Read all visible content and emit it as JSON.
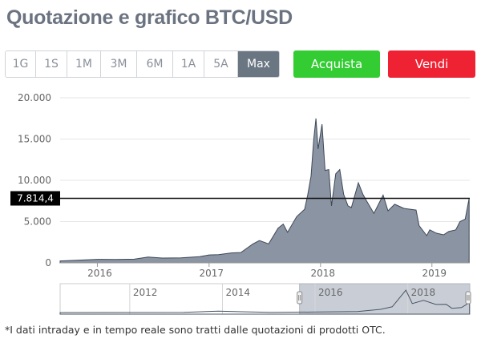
{
  "title": "Quotazione e grafico BTC/USD",
  "ranges": [
    {
      "label": "1G",
      "active": false
    },
    {
      "label": "1S",
      "active": false
    },
    {
      "label": "1M",
      "active": false
    },
    {
      "label": "3M",
      "active": false
    },
    {
      "label": "6M",
      "active": false
    },
    {
      "label": "1A",
      "active": false
    },
    {
      "label": "5A",
      "active": false
    },
    {
      "label": "Max",
      "active": true
    }
  ],
  "buy_label": "Acquista",
  "sell_label": "Vendi",
  "footnote": "*I dati intraday e in tempo reale sono tratti dalle quotazioni di prodotti OTC.",
  "colors": {
    "buy": "#33cc33",
    "sell": "#ee2233",
    "area": "#8a94a3",
    "active_range": "#6b7683"
  },
  "chart_data": {
    "type": "area",
    "ylim": [
      0,
      20000
    ],
    "y_ticks": [
      "0",
      "5.000",
      "10.000",
      "15.000",
      "20.000"
    ],
    "y_tick_values": [
      0,
      5000,
      10000,
      15000,
      20000
    ],
    "x_ticks": [
      "2016",
      "2017",
      "2018",
      "2019"
    ],
    "x_tick_values": [
      "2016-01-01",
      "2017-01-01",
      "2018-01-01",
      "2019-01-01"
    ],
    "xlim": [
      "2015-09-01",
      "2019-05-05"
    ],
    "current_value": 7814.4,
    "current_label": "7.814,4",
    "points": [
      [
        "2015-09-01",
        230
      ],
      [
        "2015-11-01",
        330
      ],
      [
        "2016-01-01",
        430
      ],
      [
        "2016-03-01",
        415
      ],
      [
        "2016-05-01",
        450
      ],
      [
        "2016-06-15",
        700
      ],
      [
        "2016-08-01",
        580
      ],
      [
        "2016-10-01",
        610
      ],
      [
        "2016-12-01",
        750
      ],
      [
        "2017-01-01",
        960
      ],
      [
        "2017-02-01",
        1000
      ],
      [
        "2017-03-15",
        1200
      ],
      [
        "2017-04-15",
        1250
      ],
      [
        "2017-05-25",
        2300
      ],
      [
        "2017-06-15",
        2700
      ],
      [
        "2017-07-15",
        2300
      ],
      [
        "2017-08-15",
        4200
      ],
      [
        "2017-09-01",
        4700
      ],
      [
        "2017-09-15",
        3700
      ],
      [
        "2017-10-15",
        5600
      ],
      [
        "2017-11-10",
        6500
      ],
      [
        "2017-11-20",
        8200
      ],
      [
        "2017-12-01",
        10500
      ],
      [
        "2017-12-10",
        15000
      ],
      [
        "2017-12-17",
        17500
      ],
      [
        "2017-12-24",
        13800
      ],
      [
        "2018-01-06",
        16800
      ],
      [
        "2018-01-16",
        11200
      ],
      [
        "2018-01-28",
        11300
      ],
      [
        "2018-02-06",
        6900
      ],
      [
        "2018-02-20",
        10800
      ],
      [
        "2018-03-05",
        11300
      ],
      [
        "2018-03-18",
        8300
      ],
      [
        "2018-04-01",
        6900
      ],
      [
        "2018-04-12",
        6700
      ],
      [
        "2018-05-05",
        9700
      ],
      [
        "2018-05-20",
        8300
      ],
      [
        "2018-06-01",
        7500
      ],
      [
        "2018-06-25",
        6000
      ],
      [
        "2018-07-25",
        8200
      ],
      [
        "2018-08-10",
        6300
      ],
      [
        "2018-09-01",
        7100
      ],
      [
        "2018-10-01",
        6600
      ],
      [
        "2018-11-10",
        6400
      ],
      [
        "2018-11-20",
        4500
      ],
      [
        "2018-12-15",
        3300
      ],
      [
        "2018-12-25",
        4000
      ],
      [
        "2019-01-15",
        3600
      ],
      [
        "2019-02-08",
        3400
      ],
      [
        "2019-02-25",
        3800
      ],
      [
        "2019-03-20",
        4000
      ],
      [
        "2019-04-03",
        5000
      ],
      [
        "2019-04-20",
        5300
      ],
      [
        "2019-05-03",
        7814.4
      ]
    ],
    "navigator": {
      "x_ticks": [
        "2012",
        "2014",
        "2016",
        "2018"
      ],
      "x_tick_values": [
        "2012-01-01",
        "2014-01-01",
        "2016-01-01",
        "2018-01-01"
      ],
      "xlim": [
        "2010-07-01",
        "2019-05-05"
      ],
      "selection": [
        "2015-09-01",
        "2019-05-05"
      ],
      "points": [
        [
          "2010-07-01",
          0
        ],
        [
          "2013-03-01",
          100
        ],
        [
          "2013-11-30",
          1100
        ],
        [
          "2014-06-01",
          600
        ],
        [
          "2015-01-15",
          200
        ],
        [
          "2015-12-01",
          400
        ],
        [
          "2016-12-01",
          750
        ],
        [
          "2017-06-01",
          2500
        ],
        [
          "2017-09-01",
          4500
        ],
        [
          "2017-12-17",
          17500
        ],
        [
          "2018-02-06",
          7000
        ],
        [
          "2018-05-05",
          9500
        ],
        [
          "2018-08-10",
          6300
        ],
        [
          "2018-11-01",
          6400
        ],
        [
          "2018-12-15",
          3300
        ],
        [
          "2019-03-01",
          3900
        ],
        [
          "2019-05-03",
          7814.4
        ]
      ]
    }
  }
}
